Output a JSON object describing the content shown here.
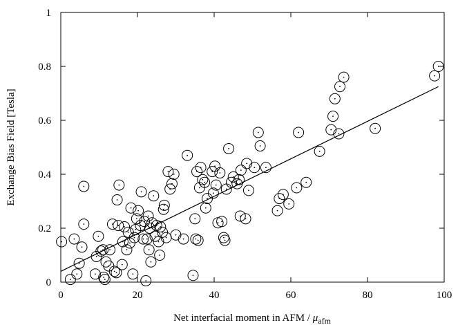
{
  "chart_data": {
    "type": "scatter",
    "title": "",
    "xlabel": "Net interfacial moment in AFM / ",
    "xlabel_symbol": "μ",
    "xlabel_subscript": "afm",
    "ylabel": "Exchange Bias Field [Tesla]",
    "xlim": [
      0,
      100
    ],
    "ylim": [
      0,
      1
    ],
    "xticks": [
      0,
      20,
      40,
      60,
      80,
      100
    ],
    "yticks": [
      0,
      0.2,
      0.4,
      0.6,
      0.8,
      1
    ],
    "ytick_labels": [
      "0",
      "0.2",
      "0.4",
      "0.6",
      "0.8",
      "1"
    ],
    "grid": false,
    "marker": "open-circle-with-center-dot",
    "fit_line": {
      "x": [
        0,
        98.5
      ],
      "y": [
        0.04,
        0.725
      ]
    },
    "points": [
      [
        0.2,
        0.15
      ],
      [
        2.5,
        0.01
      ],
      [
        3.5,
        0.16
      ],
      [
        4.2,
        0.03
      ],
      [
        4.8,
        0.07
      ],
      [
        5.5,
        0.13
      ],
      [
        6.0,
        0.215
      ],
      [
        6.0,
        0.355
      ],
      [
        9.0,
        0.03
      ],
      [
        9.3,
        0.095
      ],
      [
        9.8,
        0.17
      ],
      [
        10.5,
        0.115
      ],
      [
        11.0,
        0.12
      ],
      [
        11.2,
        0.018
      ],
      [
        11.5,
        0.01
      ],
      [
        11.8,
        0.075
      ],
      [
        12.5,
        0.06
      ],
      [
        12.8,
        0.12
      ],
      [
        13.5,
        0.215
      ],
      [
        14.0,
        0.04
      ],
      [
        14.5,
        0.035
      ],
      [
        14.7,
        0.305
      ],
      [
        15.0,
        0.21
      ],
      [
        15.2,
        0.36
      ],
      [
        16.0,
        0.065
      ],
      [
        16.2,
        0.15
      ],
      [
        16.6,
        0.205
      ],
      [
        17.2,
        0.12
      ],
      [
        17.6,
        0.185
      ],
      [
        18.0,
        0.145
      ],
      [
        18.3,
        0.275
      ],
      [
        18.8,
        0.03
      ],
      [
        19.2,
        0.165
      ],
      [
        19.5,
        0.195
      ],
      [
        19.8,
        0.235
      ],
      [
        20.2,
        0.265
      ],
      [
        20.8,
        0.21
      ],
      [
        21.0,
        0.335
      ],
      [
        21.5,
        0.16
      ],
      [
        21.8,
        0.225
      ],
      [
        22.2,
        0.005
      ],
      [
        22.5,
        0.16
      ],
      [
        22.8,
        0.245
      ],
      [
        23.0,
        0.12
      ],
      [
        23.2,
        0.2
      ],
      [
        23.5,
        0.075
      ],
      [
        23.8,
        0.22
      ],
      [
        24.2,
        0.32
      ],
      [
        24.6,
        0.17
      ],
      [
        25.0,
        0.21
      ],
      [
        25.5,
        0.15
      ],
      [
        25.8,
        0.1
      ],
      [
        26.0,
        0.205
      ],
      [
        26.5,
        0.185
      ],
      [
        26.8,
        0.27
      ],
      [
        27.0,
        0.285
      ],
      [
        27.5,
        0.165
      ],
      [
        28.0,
        0.41
      ],
      [
        28.5,
        0.345
      ],
      [
        29.0,
        0.365
      ],
      [
        29.5,
        0.4
      ],
      [
        30.0,
        0.175
      ],
      [
        32.0,
        0.16
      ],
      [
        33.0,
        0.47
      ],
      [
        34.5,
        0.025
      ],
      [
        35.0,
        0.235
      ],
      [
        35.2,
        0.16
      ],
      [
        35.5,
        0.41
      ],
      [
        35.8,
        0.155
      ],
      [
        36.2,
        0.35
      ],
      [
        36.5,
        0.425
      ],
      [
        37.0,
        0.38
      ],
      [
        37.5,
        0.37
      ],
      [
        37.8,
        0.275
      ],
      [
        38.2,
        0.31
      ],
      [
        39.5,
        0.41
      ],
      [
        39.8,
        0.33
      ],
      [
        40.2,
        0.43
      ],
      [
        40.5,
        0.36
      ],
      [
        41.0,
        0.22
      ],
      [
        41.5,
        0.405
      ],
      [
        42.0,
        0.225
      ],
      [
        42.5,
        0.165
      ],
      [
        42.8,
        0.155
      ],
      [
        43.2,
        0.345
      ],
      [
        43.8,
        0.495
      ],
      [
        44.5,
        0.37
      ],
      [
        45.0,
        0.39
      ],
      [
        46.0,
        0.365
      ],
      [
        46.5,
        0.38
      ],
      [
        47.0,
        0.415
      ],
      [
        46.8,
        0.245
      ],
      [
        48.2,
        0.235
      ],
      [
        48.5,
        0.44
      ],
      [
        49.0,
        0.34
      ],
      [
        50.5,
        0.425
      ],
      [
        51.5,
        0.555
      ],
      [
        52.0,
        0.505
      ],
      [
        53.5,
        0.425
      ],
      [
        56.5,
        0.265
      ],
      [
        57.0,
        0.31
      ],
      [
        58.0,
        0.325
      ],
      [
        59.5,
        0.29
      ],
      [
        61.5,
        0.35
      ],
      [
        62.0,
        0.555
      ],
      [
        64.0,
        0.37
      ],
      [
        67.5,
        0.485
      ],
      [
        70.5,
        0.565
      ],
      [
        71.0,
        0.615
      ],
      [
        71.5,
        0.68
      ],
      [
        72.5,
        0.55
      ],
      [
        72.8,
        0.725
      ],
      [
        73.8,
        0.76
      ],
      [
        82.0,
        0.57
      ],
      [
        97.5,
        0.765
      ],
      [
        98.5,
        0.8
      ]
    ]
  }
}
